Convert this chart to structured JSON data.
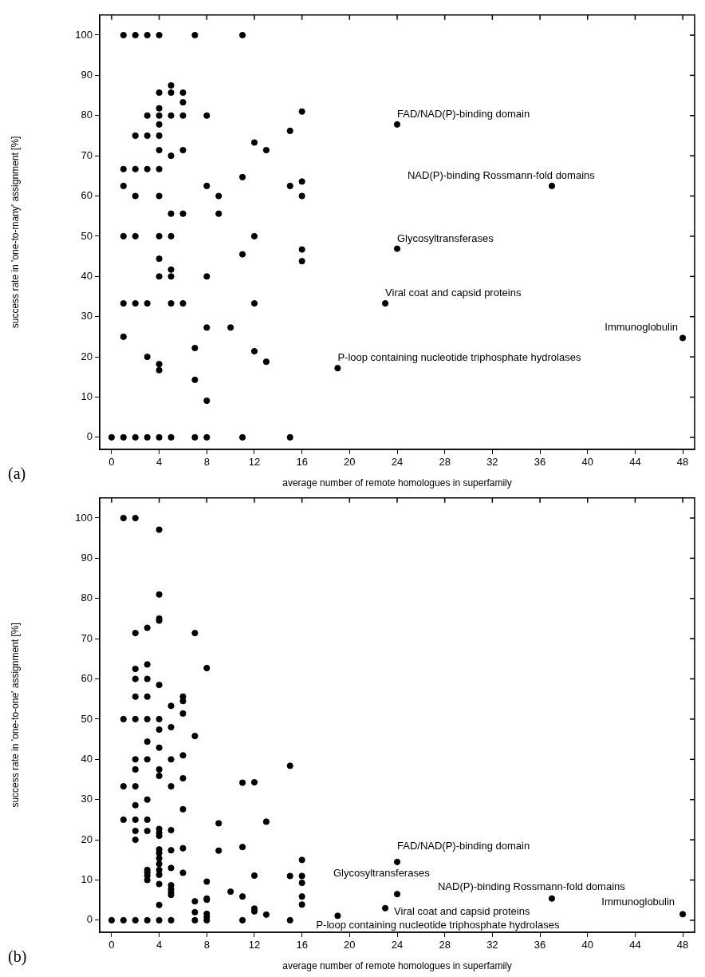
{
  "chart_data": [
    {
      "type": "scatter",
      "xlabel": "average number of remote homologues in superfamily",
      "ylabel": "success rate in 'one-to-many' assignment [%]",
      "xlim": [
        -1,
        49
      ],
      "ylim": [
        -3,
        105
      ],
      "xticks": [
        0,
        4,
        8,
        12,
        16,
        20,
        24,
        28,
        32,
        36,
        40,
        44,
        48
      ],
      "yticks": [
        0,
        10,
        20,
        30,
        40,
        50,
        60,
        70,
        80,
        90,
        100
      ],
      "grid": false,
      "legend": false,
      "marker": "circle",
      "series": [
        {
          "color": "#000000",
          "x": [
            0,
            1,
            1,
            1,
            1,
            1,
            1,
            1,
            2,
            2,
            2,
            2,
            2,
            2,
            2,
            3,
            3,
            3,
            3,
            3,
            3,
            3,
            4,
            4,
            4,
            4,
            4,
            4,
            4,
            4,
            4,
            4,
            4,
            4,
            4,
            4,
            4,
            5,
            5,
            5,
            5,
            5,
            5,
            5,
            5,
            5,
            5,
            6,
            6,
            6,
            6,
            6,
            6,
            7,
            7,
            7,
            7,
            8,
            8,
            8,
            8,
            8,
            8,
            9,
            9,
            10,
            11,
            11,
            11,
            11,
            12,
            12,
            12,
            12,
            13,
            13,
            15,
            15,
            15,
            16,
            16,
            16,
            16,
            16,
            19,
            23,
            24,
            24,
            37,
            48
          ],
          "values": [
            0,
            100,
            66.7,
            62.5,
            50,
            33.3,
            25,
            0,
            100,
            75,
            66.7,
            60,
            50,
            33.3,
            0,
            100,
            80,
            75,
            66.7,
            33.3,
            20,
            0,
            100,
            85.7,
            81.8,
            80,
            77.8,
            75,
            71.4,
            66.7,
            60,
            50,
            44.4,
            40,
            18.2,
            16.7,
            0,
            87.5,
            85.7,
            80,
            70,
            55.6,
            50,
            41.7,
            40,
            33.3,
            0,
            85.7,
            83.3,
            80,
            71.4,
            55.6,
            33.3,
            100,
            22.2,
            14.3,
            0,
            80,
            62.5,
            40,
            27.3,
            9.1,
            0,
            60,
            55.6,
            27.3,
            100,
            64.7,
            45.5,
            0,
            73.3,
            50,
            33.3,
            21.4,
            71.4,
            18.8,
            76.2,
            62.5,
            0,
            81,
            63.6,
            60,
            46.7,
            43.8,
            17.2,
            33.3,
            77.8,
            46.9,
            62.5,
            24.7
          ]
        }
      ],
      "annotations": [
        {
          "text": "FAD/NAD(P)-binding domain",
          "x": 24,
          "y": 77.8
        },
        {
          "text": "NAD(P)-binding Rossmann-fold domains",
          "x": 37,
          "y": 62.5
        },
        {
          "text": "Glycosyltransferases",
          "x": 24,
          "y": 46.9
        },
        {
          "text": "Viral coat and capsid proteins",
          "x": 23,
          "y": 33.3
        },
        {
          "text": "Immunoglobulin",
          "x": 48,
          "y": 24.7
        },
        {
          "text": "P-loop containing nucleotide triphosphate hydrolases",
          "x": 19,
          "y": 17.2
        },
        "(a)"
      ]
    },
    {
      "type": "scatter",
      "xlabel": "average number of remote homologues in superfamily",
      "ylabel": "success rate in 'one-to-one' assignment [%]",
      "xlim": [
        -1,
        49
      ],
      "ylim": [
        -3,
        105
      ],
      "xticks": [
        0,
        4,
        8,
        12,
        16,
        20,
        24,
        28,
        32,
        36,
        40,
        44,
        48
      ],
      "yticks": [
        0,
        10,
        20,
        30,
        40,
        50,
        60,
        70,
        80,
        90,
        100
      ],
      "grid": false,
      "legend": false,
      "marker": "circle",
      "series": [
        {
          "color": "#000000",
          "x": [
            0,
            1,
            1,
            1,
            1,
            1,
            2,
            2,
            2,
            2,
            2,
            2,
            2,
            2,
            2,
            2,
            2,
            2,
            2,
            2,
            3,
            3,
            3,
            3,
            3,
            3,
            3,
            3,
            3,
            3,
            3,
            3,
            3,
            3,
            3,
            4,
            4,
            4,
            4,
            4,
            4,
            4,
            4,
            4,
            4,
            4,
            4,
            4,
            4,
            4,
            4,
            4,
            4,
            4,
            4,
            4,
            4,
            5,
            5,
            5,
            5,
            5,
            5,
            5,
            5,
            5,
            5,
            5,
            5,
            6,
            6,
            6,
            6,
            6,
            6,
            6,
            6,
            7,
            7,
            7,
            7,
            7,
            8,
            8,
            8,
            8,
            8,
            8,
            8,
            9,
            9,
            10,
            11,
            11,
            11,
            11,
            12,
            12,
            12,
            12,
            13,
            13,
            15,
            15,
            15,
            16,
            16,
            16,
            16,
            16,
            19,
            23,
            24,
            24,
            37,
            48
          ],
          "values": [
            0,
            100,
            50,
            33.3,
            25,
            0,
            100,
            71.4,
            62.5,
            60,
            55.6,
            50,
            40,
            37.5,
            33.3,
            28.6,
            25,
            22.2,
            20,
            0,
            72.7,
            63.6,
            60,
            55.6,
            50,
            44.4,
            40,
            30,
            25,
            22.2,
            12.5,
            11.8,
            11.1,
            10,
            0,
            97.1,
            81,
            75,
            74.5,
            58.5,
            50,
            47.4,
            42.9,
            37.5,
            35.9,
            22.7,
            21.7,
            21,
            17.6,
            16.7,
            15.4,
            14,
            12.5,
            11.3,
            9,
            3.8,
            0,
            53.3,
            48,
            40,
            33.3,
            22.4,
            17.4,
            13,
            8.7,
            7.7,
            6.9,
            6.3,
            0,
            55.6,
            54.5,
            51.4,
            41,
            35.3,
            27.6,
            17.9,
            11.8,
            71.4,
            45.8,
            4.7,
            2,
            0,
            62.7,
            9.6,
            5.4,
            5.1,
            1.6,
            0.8,
            0,
            24.1,
            17.3,
            7.1,
            34.2,
            18.2,
            5.9,
            0,
            34.3,
            11.1,
            2.9,
            2.2,
            24.5,
            1.4,
            38.4,
            11,
            0,
            15,
            11,
            9.3,
            5.9,
            3.9,
            1.1,
            3,
            14.5,
            6.5,
            5.4,
            1.5
          ]
        }
      ],
      "annotations": [
        {
          "text": "FAD/NAD(P)-binding domain",
          "x": 24,
          "y": 14.5
        },
        {
          "text": "Glycosyltransferases",
          "x": 24,
          "y": 6.5
        },
        {
          "text": "NAD(P)-binding Rossmann-fold domains",
          "x": 37,
          "y": 5.4
        },
        {
          "text": "Viral coat and capsid proteins",
          "x": 23,
          "y": 3
        },
        {
          "text": "Immunoglobulin",
          "x": 48,
          "y": 1.5
        },
        {
          "text": "P-loop containing nucleotide triphosphate hydrolases",
          "x": 19,
          "y": 1.1
        },
        "(b)"
      ]
    }
  ]
}
